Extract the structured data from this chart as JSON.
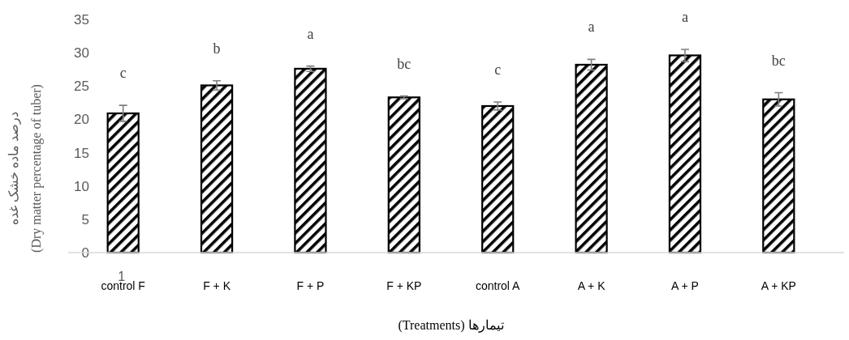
{
  "chart_data": {
    "type": "bar",
    "categories": [
      "control F",
      "F + K",
      "F + P",
      "F + KP",
      "control A",
      "A + K",
      "A + P",
      "A + KP"
    ],
    "values": [
      20.9,
      25.1,
      27.6,
      23.3,
      22.0,
      28.2,
      29.6,
      23.0
    ],
    "errors": [
      1.2,
      0.7,
      0.4,
      0.2,
      0.6,
      0.8,
      0.9,
      1.0
    ],
    "color": "#000000",
    "ylim": [
      0,
      35
    ],
    "yticks": [
      0,
      5,
      10,
      15,
      20,
      25,
      30,
      35
    ],
    "ylabel": "درصد ماده خشک غده\n(Dry matter percentage of tuber)",
    "xlabel": "تیمارها (Treatments)",
    "annotations": [
      "c",
      "b",
      "a",
      "bc",
      "c",
      "a",
      "a",
      "bc",
      "1"
    ]
  }
}
